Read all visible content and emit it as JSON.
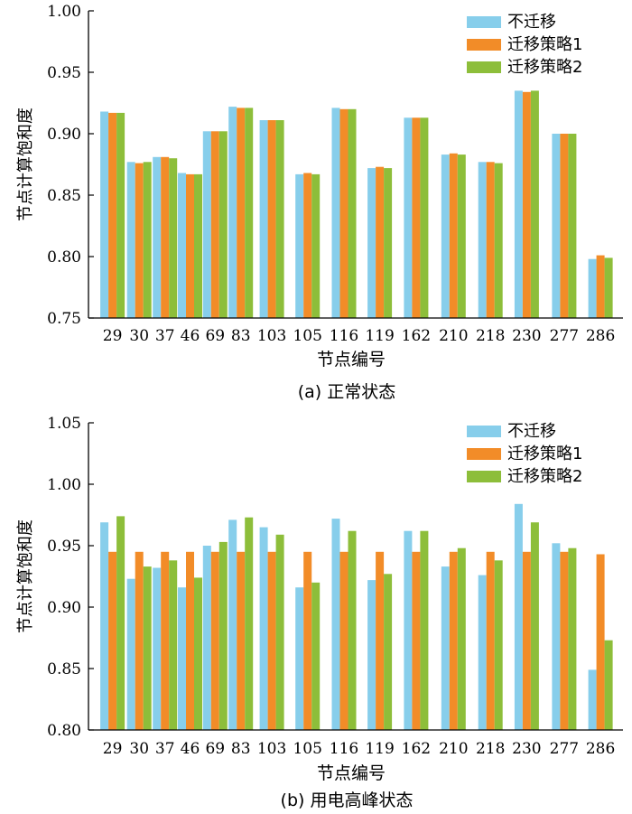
{
  "colors": {
    "s1": "#87CEEB",
    "s2": "#F28C28",
    "s3": "#8DBE3A",
    "axis": "#000000"
  },
  "chart_data": [
    {
      "type": "bar",
      "title": "",
      "caption": "(a)  正常状态",
      "xlabel": "节点编号",
      "ylabel": "节点计算饱和度",
      "ylim": [
        0.75,
        1.0
      ],
      "yticks": [
        "0.75",
        "0.80",
        "0.85",
        "0.90",
        "0.95",
        "1.00"
      ],
      "legend_position": "top-right",
      "categories": [
        "29",
        "30",
        "37",
        "46",
        "69",
        "83",
        "103",
        "105",
        "116",
        "119",
        "162",
        "210",
        "218",
        "230",
        "277",
        "286"
      ],
      "series": [
        {
          "name": "不迁移",
          "values": [
            0.918,
            0.877,
            0.881,
            0.868,
            0.902,
            0.922,
            0.911,
            0.867,
            0.921,
            0.872,
            0.913,
            0.883,
            0.877,
            0.935,
            0.9,
            0.798
          ]
        },
        {
          "name": "迁移策略1",
          "values": [
            0.917,
            0.876,
            0.881,
            0.867,
            0.902,
            0.921,
            0.911,
            0.868,
            0.92,
            0.873,
            0.913,
            0.884,
            0.877,
            0.934,
            0.9,
            0.801
          ]
        },
        {
          "name": "迁移策略2",
          "values": [
            0.917,
            0.877,
            0.88,
            0.867,
            0.902,
            0.921,
            0.911,
            0.867,
            0.92,
            0.872,
            0.913,
            0.883,
            0.876,
            0.935,
            0.9,
            0.799
          ]
        }
      ]
    },
    {
      "type": "bar",
      "title": "",
      "caption": "(b)  用电高峰状态",
      "xlabel": "节点编号",
      "ylabel": "节点计算饱和度",
      "ylim": [
        0.8,
        1.05
      ],
      "yticks": [
        "0.80",
        "0.85",
        "0.90",
        "0.95",
        "1.00",
        "1.05"
      ],
      "legend_position": "top-right",
      "categories": [
        "29",
        "30",
        "37",
        "46",
        "69",
        "83",
        "103",
        "105",
        "116",
        "119",
        "162",
        "210",
        "218",
        "230",
        "277",
        "286"
      ],
      "series": [
        {
          "name": "不迁移",
          "values": [
            0.969,
            0.923,
            0.932,
            0.916,
            0.95,
            0.971,
            0.965,
            0.916,
            0.972,
            0.922,
            0.962,
            0.933,
            0.926,
            0.984,
            0.952,
            0.849
          ]
        },
        {
          "name": "迁移策略1",
          "values": [
            0.945,
            0.945,
            0.945,
            0.945,
            0.945,
            0.945,
            0.945,
            0.945,
            0.945,
            0.945,
            0.945,
            0.945,
            0.945,
            0.945,
            0.945,
            0.943
          ]
        },
        {
          "name": "迁移策略2",
          "values": [
            0.974,
            0.933,
            0.938,
            0.924,
            0.953,
            0.973,
            0.959,
            0.92,
            0.962,
            0.927,
            0.962,
            0.948,
            0.938,
            0.969,
            0.948,
            0.873
          ]
        }
      ]
    }
  ]
}
